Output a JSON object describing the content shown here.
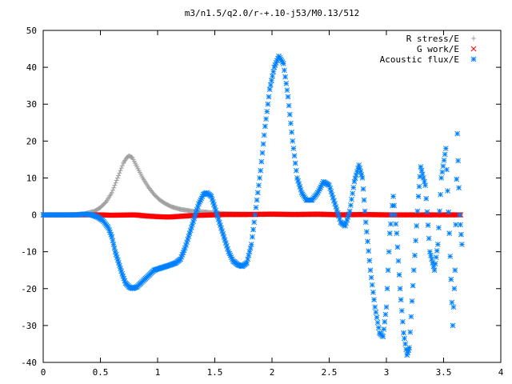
{
  "chart_data": {
    "type": "scatter",
    "title": "m3/n1.5/q2.0/r-+.10-j53/M0.13/512",
    "xlabel": "",
    "ylabel": "",
    "xlim": [
      0,
      4
    ],
    "ylim": [
      -40,
      50
    ],
    "xticks": [
      "0",
      "0.5",
      "1",
      "1.5",
      "2",
      "2.5",
      "3",
      "3.5",
      "4"
    ],
    "yticks": [
      "50",
      "40",
      "30",
      "20",
      "10",
      "0",
      "-10",
      "-20",
      "-30",
      "-40"
    ],
    "grid": false,
    "legend_position": "top-right",
    "series": [
      {
        "name": "R stress/E",
        "marker": "+",
        "color": "#a0a0a0",
        "points": [
          [
            0,
            0
          ],
          [
            0.2,
            0
          ],
          [
            0.35,
            0.2
          ],
          [
            0.45,
            1
          ],
          [
            0.5,
            2
          ],
          [
            0.55,
            3.5
          ],
          [
            0.6,
            6
          ],
          [
            0.65,
            10
          ],
          [
            0.7,
            14
          ],
          [
            0.73,
            15.5
          ],
          [
            0.75,
            16
          ],
          [
            0.78,
            15.5
          ],
          [
            0.82,
            13
          ],
          [
            0.87,
            10
          ],
          [
            0.92,
            7.5
          ],
          [
            0.97,
            5.5
          ],
          [
            1.02,
            4
          ],
          [
            1.07,
            3
          ],
          [
            1.12,
            2.2
          ],
          [
            1.2,
            1.5
          ],
          [
            1.3,
            1
          ],
          [
            1.4,
            0.8
          ],
          [
            1.5,
            0.5
          ],
          [
            1.6,
            0.3
          ],
          [
            1.75,
            0.2
          ],
          [
            2.0,
            0.1
          ],
          [
            2.5,
            0
          ],
          [
            3.0,
            0
          ],
          [
            3.5,
            0
          ],
          [
            3.65,
            0
          ]
        ]
      },
      {
        "name": "G work/E",
        "marker": "x",
        "color": "#ff0000",
        "points": [
          [
            0,
            0
          ],
          [
            0.3,
            0
          ],
          [
            0.5,
            0
          ],
          [
            0.6,
            -0.1
          ],
          [
            0.8,
            0
          ],
          [
            0.9,
            -0.3
          ],
          [
            1.0,
            -0.5
          ],
          [
            1.1,
            -0.6
          ],
          [
            1.2,
            -0.4
          ],
          [
            1.3,
            -0.2
          ],
          [
            1.4,
            -0.1
          ],
          [
            1.5,
            0
          ],
          [
            1.6,
            0.1
          ],
          [
            1.8,
            0.1
          ],
          [
            2.0,
            0.2
          ],
          [
            2.2,
            0.1
          ],
          [
            2.4,
            0.2
          ],
          [
            2.6,
            0
          ],
          [
            2.8,
            0.1
          ],
          [
            3.0,
            0
          ],
          [
            3.2,
            0
          ],
          [
            3.4,
            0
          ],
          [
            3.5,
            0
          ],
          [
            3.65,
            0
          ]
        ]
      },
      {
        "name": "Acoustic flux/E",
        "marker": "*",
        "color": "#0080ff",
        "points": [
          [
            0,
            0
          ],
          [
            0.2,
            0
          ],
          [
            0.3,
            0
          ],
          [
            0.36,
            0.2
          ],
          [
            0.42,
            0
          ],
          [
            0.47,
            -0.5
          ],
          [
            0.52,
            -1.5
          ],
          [
            0.57,
            -3.5
          ],
          [
            0.6,
            -6
          ],
          [
            0.63,
            -10
          ],
          [
            0.66,
            -13
          ],
          [
            0.69,
            -16
          ],
          [
            0.72,
            -18.5
          ],
          [
            0.75,
            -19.5
          ],
          [
            0.78,
            -20
          ],
          [
            0.82,
            -19.5
          ],
          [
            0.87,
            -18
          ],
          [
            0.92,
            -16.5
          ],
          [
            0.97,
            -15
          ],
          [
            1.02,
            -14.5
          ],
          [
            1.07,
            -14
          ],
          [
            1.12,
            -13.5
          ],
          [
            1.16,
            -13
          ],
          [
            1.2,
            -12
          ],
          [
            1.24,
            -9
          ],
          [
            1.28,
            -5
          ],
          [
            1.32,
            -1
          ],
          [
            1.36,
            3
          ],
          [
            1.4,
            5.5
          ],
          [
            1.43,
            6
          ],
          [
            1.47,
            5
          ],
          [
            1.5,
            2
          ],
          [
            1.54,
            -2
          ],
          [
            1.58,
            -6
          ],
          [
            1.62,
            -10
          ],
          [
            1.66,
            -12.5
          ],
          [
            1.7,
            -13.5
          ],
          [
            1.74,
            -14
          ],
          [
            1.78,
            -13
          ],
          [
            1.82,
            -8
          ],
          [
            1.86,
            2
          ],
          [
            1.9,
            12
          ],
          [
            1.94,
            24
          ],
          [
            1.98,
            34
          ],
          [
            2.02,
            40
          ],
          [
            2.06,
            43
          ],
          [
            2.1,
            41
          ],
          [
            2.14,
            32
          ],
          [
            2.18,
            20
          ],
          [
            2.22,
            10
          ],
          [
            2.26,
            6
          ],
          [
            2.3,
            4
          ],
          [
            2.35,
            4
          ],
          [
            2.4,
            6
          ],
          [
            2.45,
            9
          ],
          [
            2.5,
            8
          ],
          [
            2.55,
            3
          ],
          [
            2.6,
            -2
          ],
          [
            2.64,
            -3
          ],
          [
            2.68,
            1
          ],
          [
            2.72,
            9
          ],
          [
            2.76,
            13.5
          ],
          [
            2.79,
            10
          ],
          [
            2.82,
            -2
          ],
          [
            2.86,
            -15
          ],
          [
            2.9,
            -25
          ],
          [
            2.94,
            -32
          ],
          [
            2.97,
            -33
          ],
          [
            3.0,
            -25
          ],
          [
            3.03,
            -5
          ],
          [
            3.06,
            5
          ],
          [
            3.09,
            -5
          ],
          [
            3.12,
            -20
          ],
          [
            3.15,
            -32
          ],
          [
            3.18,
            -38
          ],
          [
            3.2,
            -36
          ],
          [
            3.24,
            -15
          ],
          [
            3.28,
            5
          ],
          [
            3.3,
            13
          ],
          [
            3.34,
            8
          ],
          [
            3.38,
            -10
          ],
          [
            3.42,
            -15
          ],
          [
            3.45,
            -8
          ],
          [
            3.48,
            10
          ],
          [
            3.52,
            18
          ],
          [
            3.55,
            -5
          ],
          [
            3.58,
            -30
          ],
          [
            3.6,
            -15
          ],
          [
            3.62,
            22
          ],
          [
            3.64,
            0
          ],
          [
            3.66,
            -8
          ]
        ]
      }
    ]
  }
}
